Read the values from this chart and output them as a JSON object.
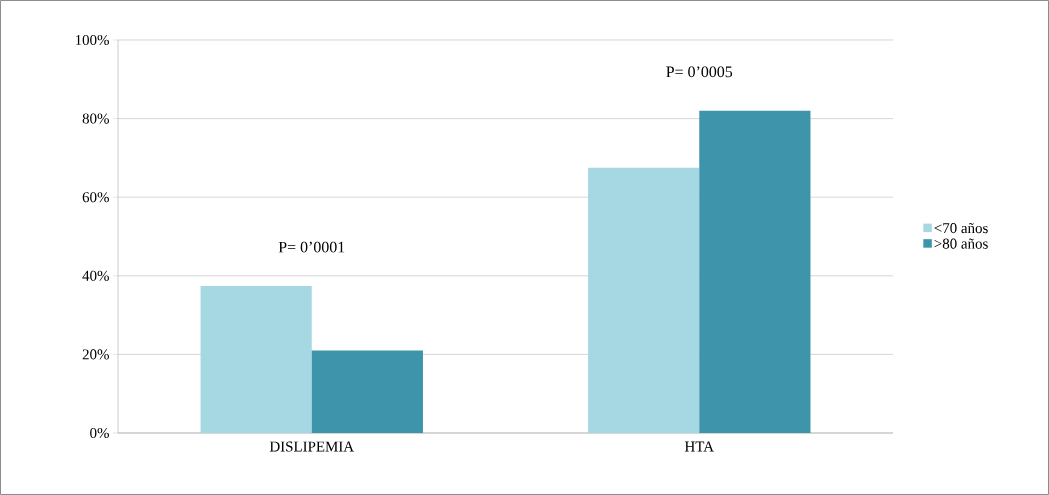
{
  "chart_data": {
    "type": "bar",
    "categories": [
      "DISLIPEMIA",
      "HTA"
    ],
    "series": [
      {
        "name": "<70 años",
        "color": "#a6d8e4",
        "values": [
          37.4,
          67.5
        ]
      },
      {
        "name": ">80 años",
        "color": "#3e94ab",
        "values": [
          21,
          82
        ]
      }
    ],
    "ylim": [
      0,
      100
    ],
    "yticks": [
      {
        "value": 0,
        "label": "0%"
      },
      {
        "value": 20,
        "label": "20%"
      },
      {
        "value": 40,
        "label": "40%"
      },
      {
        "value": 60,
        "label": "60%"
      },
      {
        "value": 80,
        "label": "80%"
      },
      {
        "value": 100,
        "label": "100%"
      }
    ],
    "grid": "y",
    "legend": "right",
    "annotations": [
      "P= 0’0001",
      "P= 0’0005"
    ]
  }
}
